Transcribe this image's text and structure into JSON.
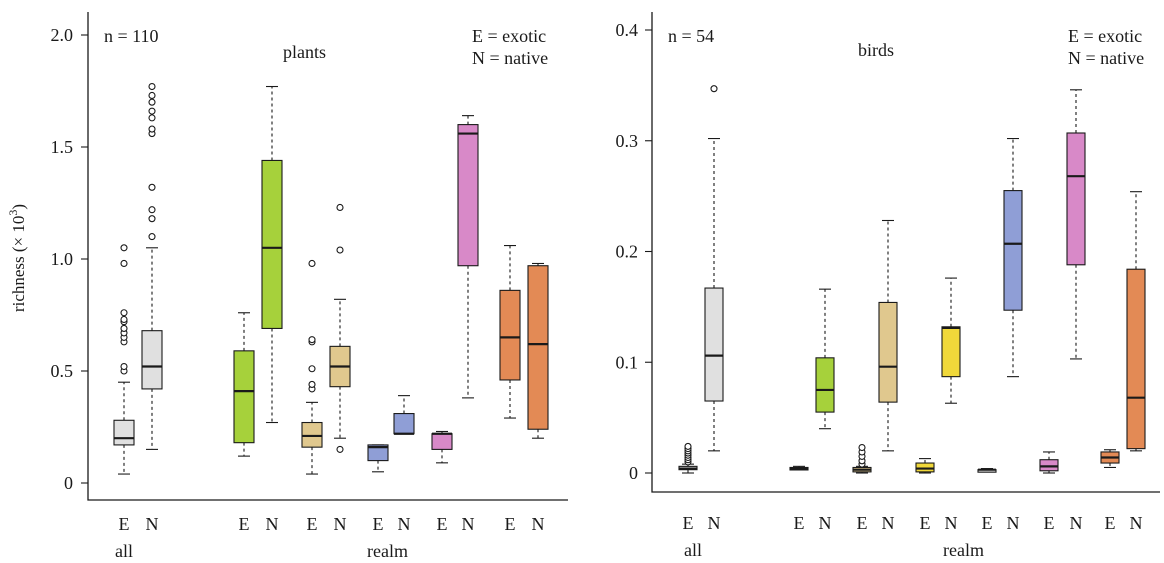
{
  "chart_data": [
    {
      "type": "box",
      "panel_label": "plants",
      "n_label": "n = 110",
      "legend": [
        "E = exotic",
        "N = native"
      ],
      "ylabel": "richness (× 10",
      "ylabel_sup": "3",
      "ylabel_end": ")",
      "ylim": [
        0,
        2.0
      ],
      "yticks": [
        0,
        0.5,
        1.0,
        1.5,
        2.0
      ],
      "ytick_labels": [
        "0",
        "0.5",
        "1.0",
        "1.5",
        "2.0"
      ],
      "group_labels": [
        "all",
        "realm"
      ],
      "boxes": [
        {
          "label": "E",
          "color": "#e0e0e0",
          "min": 0.04,
          "q1": 0.17,
          "median": 0.2,
          "q3": 0.28,
          "max": 0.45,
          "outliers": [
            0.5,
            0.52,
            0.63,
            0.65,
            0.67,
            0.69,
            0.72,
            0.73,
            0.76,
            0.98,
            1.05
          ]
        },
        {
          "label": "N",
          "color": "#e0e0e0",
          "min": 0.15,
          "q1": 0.42,
          "median": 0.52,
          "q3": 0.68,
          "max": 1.05,
          "outliers": [
            1.1,
            1.18,
            1.22,
            1.32,
            1.56,
            1.58,
            1.63,
            1.66,
            1.7,
            1.73,
            1.77
          ]
        },
        {
          "label": "E",
          "color": "#a6d13b",
          "min": 0.12,
          "q1": 0.18,
          "median": 0.41,
          "q3": 0.59,
          "max": 0.76,
          "outliers": []
        },
        {
          "label": "N",
          "color": "#a6d13b",
          "min": 0.27,
          "q1": 0.69,
          "median": 1.05,
          "q3": 1.44,
          "max": 1.77,
          "outliers": []
        },
        {
          "label": "E",
          "color": "#e0c88e",
          "min": 0.04,
          "q1": 0.16,
          "median": 0.21,
          "q3": 0.27,
          "max": 0.36,
          "outliers": [
            0.42,
            0.44,
            0.51,
            0.63,
            0.64,
            0.98
          ]
        },
        {
          "label": "N",
          "color": "#e0c88e",
          "min": 0.2,
          "q1": 0.43,
          "median": 0.52,
          "q3": 0.61,
          "max": 0.82,
          "outliers": [
            0.15,
            1.04,
            1.23
          ]
        },
        {
          "label": "E",
          "color": "#8f9ed6",
          "min": 0.05,
          "q1": 0.1,
          "median": 0.16,
          "q3": 0.17,
          "max": 0.17,
          "outliers": []
        },
        {
          "label": "N",
          "color": "#8f9ed6",
          "min": 0.22,
          "q1": 0.22,
          "median": 0.22,
          "q3": 0.31,
          "max": 0.39,
          "outliers": []
        },
        {
          "label": "E",
          "color": "#d889c8",
          "min": 0.09,
          "q1": 0.15,
          "median": 0.22,
          "q3": 0.22,
          "max": 0.23,
          "outliers": []
        },
        {
          "label": "N",
          "color": "#d889c8",
          "min": 0.38,
          "q1": 0.97,
          "median": 1.56,
          "q3": 1.6,
          "max": 1.64,
          "outliers": []
        },
        {
          "label": "E",
          "color": "#e38a55",
          "min": 0.29,
          "q1": 0.46,
          "median": 0.65,
          "q3": 0.86,
          "max": 1.06,
          "outliers": []
        },
        {
          "label": "N",
          "color": "#e38a55",
          "min": 0.2,
          "q1": 0.24,
          "median": 0.62,
          "q3": 0.97,
          "max": 0.98,
          "outliers": []
        }
      ]
    },
    {
      "type": "box",
      "panel_label": "birds",
      "n_label": "n = 54",
      "legend": [
        "E = exotic",
        "N = native"
      ],
      "ylim": [
        0,
        0.4
      ],
      "yticks": [
        0,
        0.1,
        0.2,
        0.3,
        0.4
      ],
      "ytick_labels": [
        "0",
        "0.1",
        "0.2",
        "0.3",
        "0.4"
      ],
      "group_labels": [
        "all",
        "realm"
      ],
      "boxes": [
        {
          "label": "E",
          "color": "#e0e0e0",
          "min": 0.0,
          "q1": 0.003,
          "median": 0.004,
          "q3": 0.006,
          "max": 0.008,
          "outliers": [
            0.01,
            0.012,
            0.014,
            0.016,
            0.018,
            0.02,
            0.022,
            0.024
          ]
        },
        {
          "label": "N",
          "color": "#e0e0e0",
          "min": 0.02,
          "q1": 0.065,
          "median": 0.106,
          "q3": 0.167,
          "max": 0.302,
          "outliers": [
            0.347
          ]
        },
        {
          "label": "E",
          "color": "#a6d13b",
          "min": 0.003,
          "q1": 0.003,
          "median": 0.004,
          "q3": 0.005,
          "max": 0.006,
          "outliers": []
        },
        {
          "label": "N",
          "color": "#a6d13b",
          "min": 0.04,
          "q1": 0.055,
          "median": 0.075,
          "q3": 0.104,
          "max": 0.166,
          "outliers": []
        },
        {
          "label": "E",
          "color": "#e0c88e",
          "min": 0.0,
          "q1": 0.001,
          "median": 0.003,
          "q3": 0.005,
          "max": 0.006,
          "outliers": [
            0.008,
            0.011,
            0.015,
            0.019,
            0.023
          ]
        },
        {
          "label": "N",
          "color": "#e0c88e",
          "min": 0.02,
          "q1": 0.064,
          "median": 0.096,
          "q3": 0.154,
          "max": 0.228,
          "outliers": []
        },
        {
          "label": "E",
          "color": "#f0d83a",
          "min": 0.0,
          "q1": 0.001,
          "median": 0.004,
          "q3": 0.009,
          "max": 0.013,
          "outliers": []
        },
        {
          "label": "N",
          "color": "#f0d83a",
          "min": 0.063,
          "q1": 0.087,
          "median": 0.131,
          "q3": 0.132,
          "max": 0.176,
          "outliers": []
        },
        {
          "label": "E",
          "color": "#e0e0e0",
          "min": 0.001,
          "q1": 0.002,
          "median": 0.003,
          "q3": 0.003,
          "max": 0.004,
          "outliers": []
        },
        {
          "label": "N",
          "color": "#8f9ed6",
          "min": 0.087,
          "q1": 0.147,
          "median": 0.207,
          "q3": 0.255,
          "max": 0.302,
          "outliers": []
        },
        {
          "label": "E",
          "color": "#d889c8",
          "min": 0.0,
          "q1": 0.002,
          "median": 0.006,
          "q3": 0.012,
          "max": 0.019,
          "outliers": []
        },
        {
          "label": "N",
          "color": "#d889c8",
          "min": 0.103,
          "q1": 0.188,
          "median": 0.268,
          "q3": 0.307,
          "max": 0.346,
          "outliers": []
        },
        {
          "label": "E",
          "color": "#e38a55",
          "min": 0.005,
          "q1": 0.009,
          "median": 0.014,
          "q3": 0.019,
          "max": 0.021,
          "outliers": []
        },
        {
          "label": "N",
          "color": "#e38a55",
          "min": 0.02,
          "q1": 0.022,
          "median": 0.068,
          "q3": 0.184,
          "max": 0.254,
          "outliers": []
        }
      ]
    }
  ]
}
